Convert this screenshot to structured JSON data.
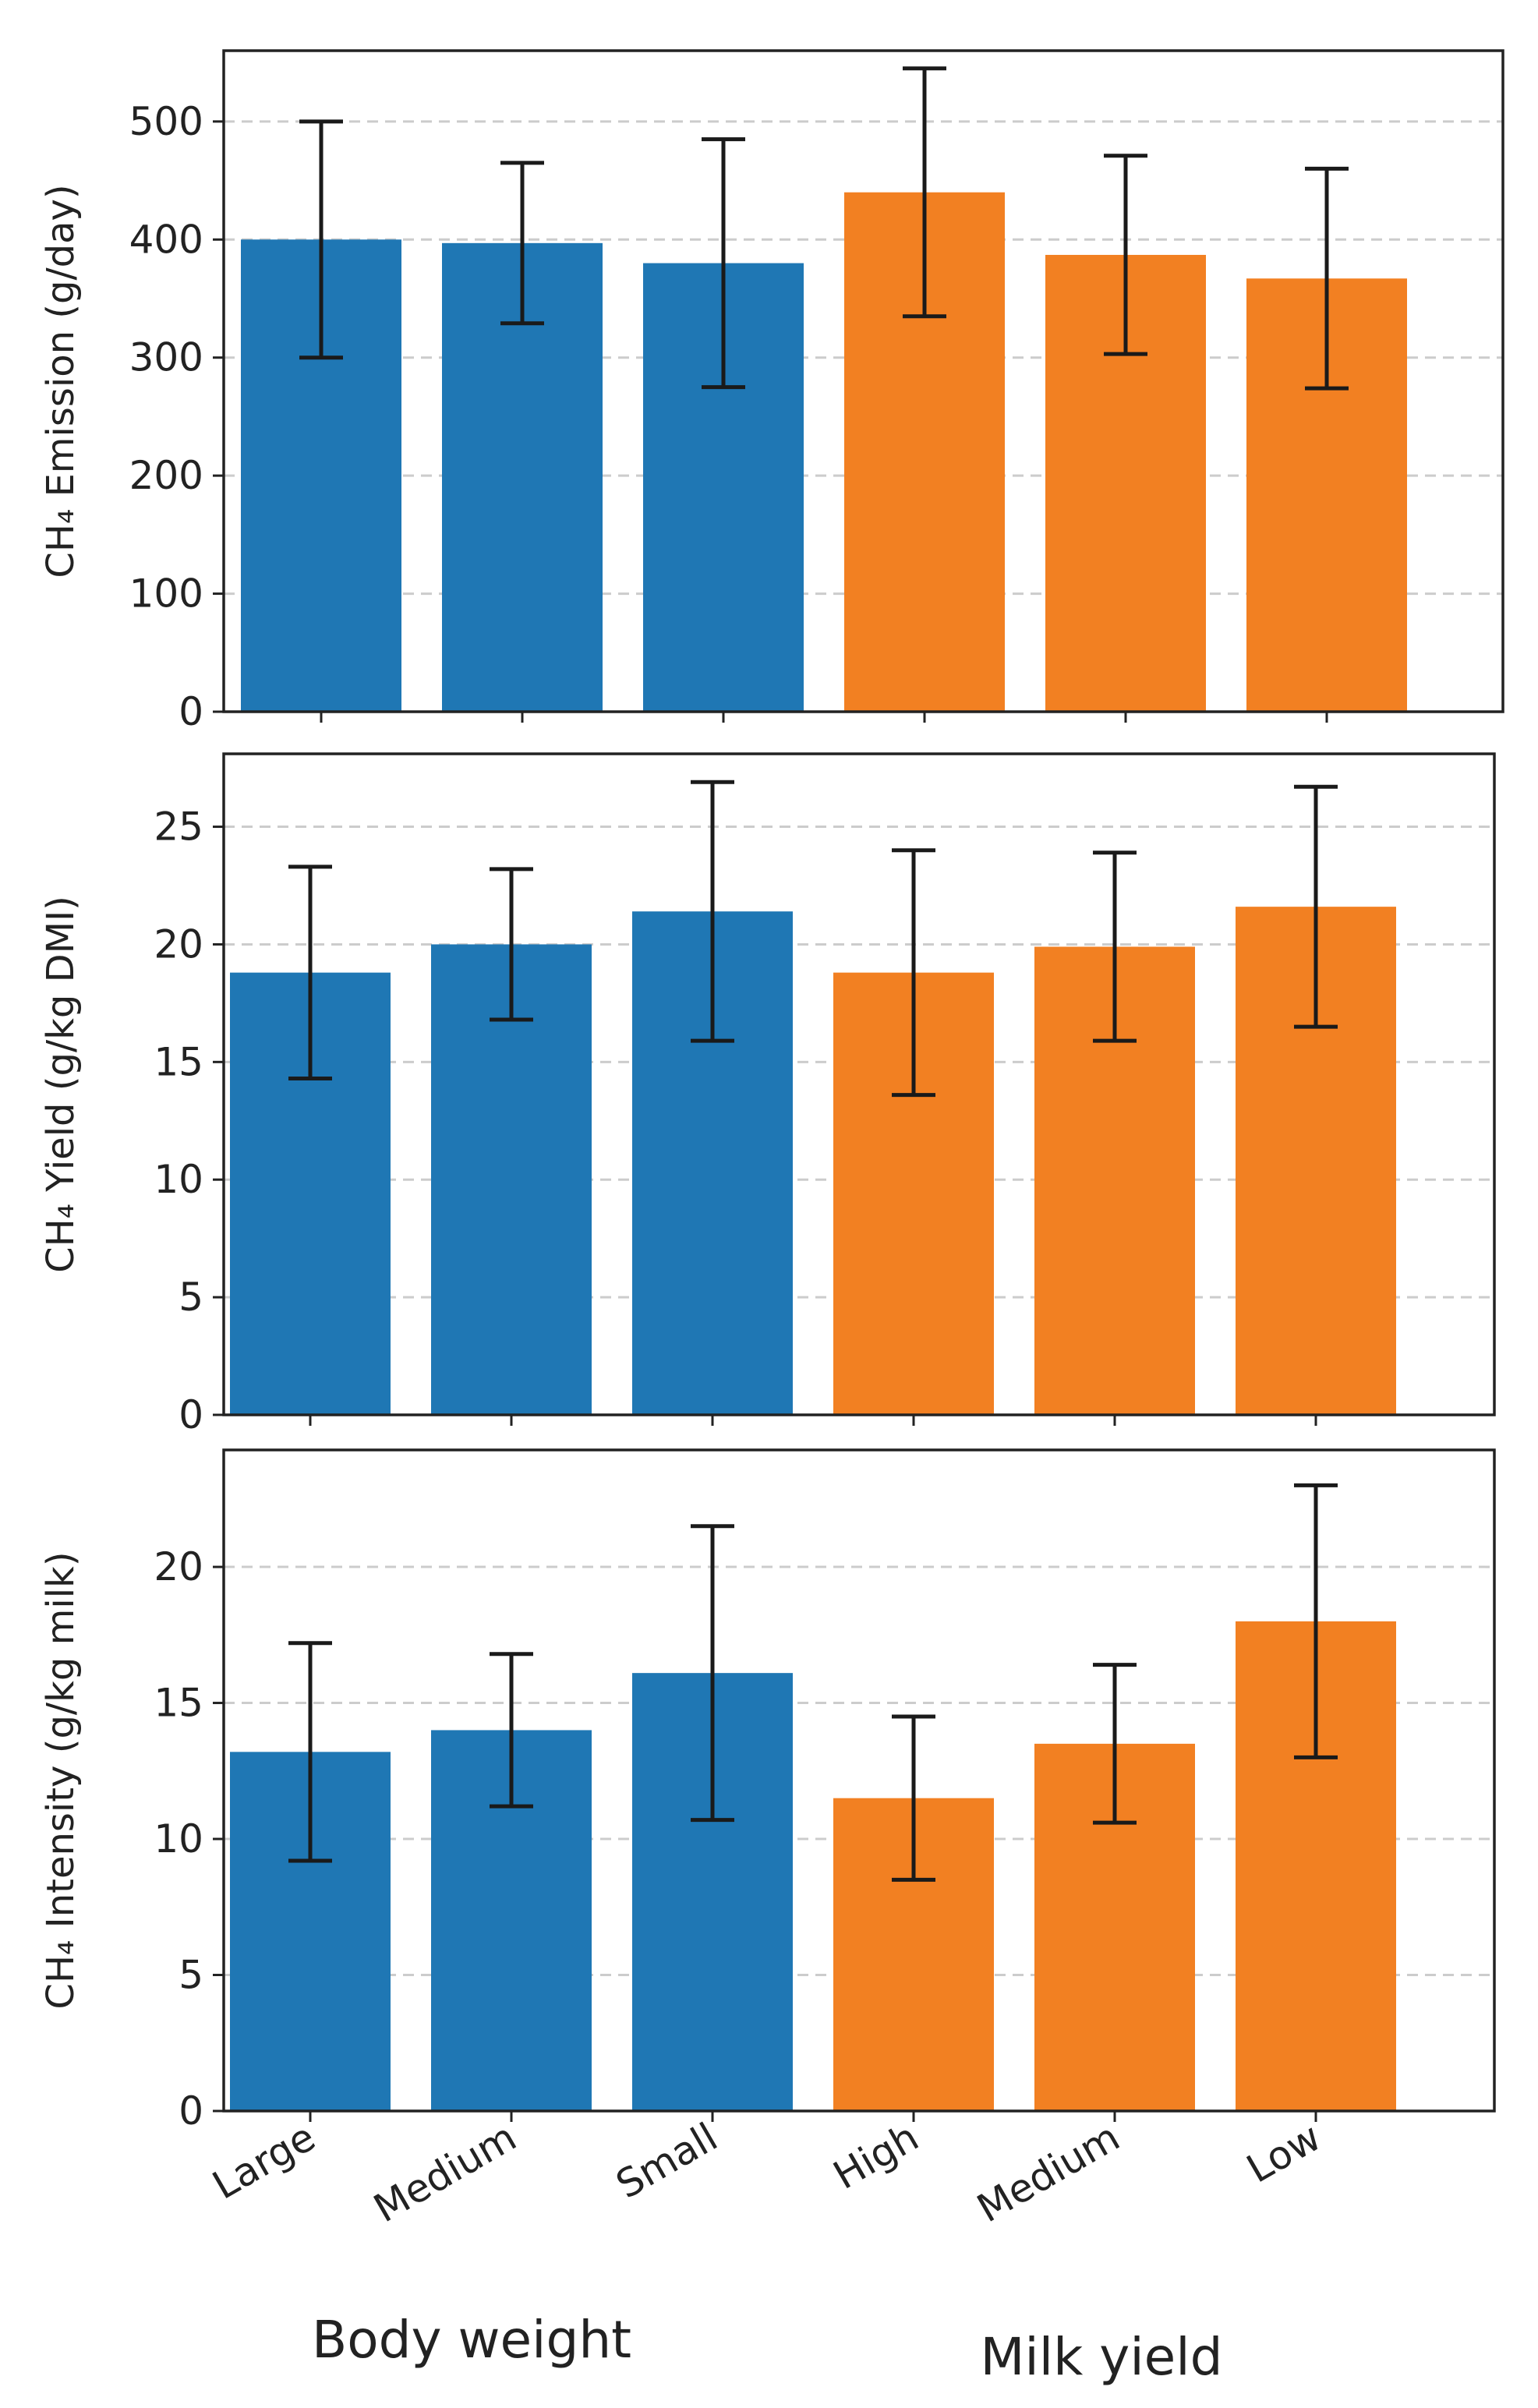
{
  "chart_data": [
    {
      "type": "bar",
      "ylabel": "CH₄ Emission (g/day)",
      "categories": [
        "Large",
        "Medium",
        "Small",
        "High",
        "Medium",
        "Low"
      ],
      "values": [
        400,
        397,
        380,
        440,
        387,
        367
      ],
      "errors": [
        100,
        68,
        105,
        105,
        84,
        93
      ],
      "ylim": [
        0,
        560
      ],
      "yticks": [
        0,
        100,
        200,
        300,
        400,
        500
      ],
      "grid": true
    },
    {
      "type": "bar",
      "ylabel": "CH₄ Yield (g/kg DMI)",
      "categories": [
        "Large",
        "Medium",
        "Small",
        "High",
        "Medium",
        "Low"
      ],
      "values": [
        18.8,
        20.0,
        21.4,
        18.8,
        19.9,
        21.6
      ],
      "errors": [
        4.5,
        3.2,
        5.5,
        5.2,
        4.0,
        5.1
      ],
      "ylim": [
        0,
        28.1
      ],
      "yticks": [
        0,
        5,
        10,
        15,
        20,
        25
      ],
      "grid": true
    },
    {
      "type": "bar",
      "ylabel": "CH₄ Intensity (g/kg milk)",
      "categories": [
        "Large",
        "Medium",
        "Small",
        "High",
        "Medium",
        "Low"
      ],
      "values": [
        13.2,
        14.0,
        16.1,
        11.5,
        13.5,
        18.0
      ],
      "errors": [
        4.0,
        2.8,
        5.4,
        3.0,
        2.9,
        5.0
      ],
      "ylim": [
        0,
        24.3
      ],
      "yticks": [
        0,
        5,
        10,
        15,
        20
      ],
      "grid": true
    }
  ],
  "x_categories": [
    "Large",
    "Medium",
    "Small",
    "High",
    "Medium",
    "Low"
  ],
  "groups": [
    {
      "label": "Body weight",
      "color": "#1f77b4"
    },
    {
      "label": "Milk yield",
      "color": "#f28022"
    }
  ],
  "bar_colors": [
    "#1f77b4",
    "#1f77b4",
    "#1f77b4",
    "#f28022",
    "#f28022",
    "#f28022"
  ]
}
